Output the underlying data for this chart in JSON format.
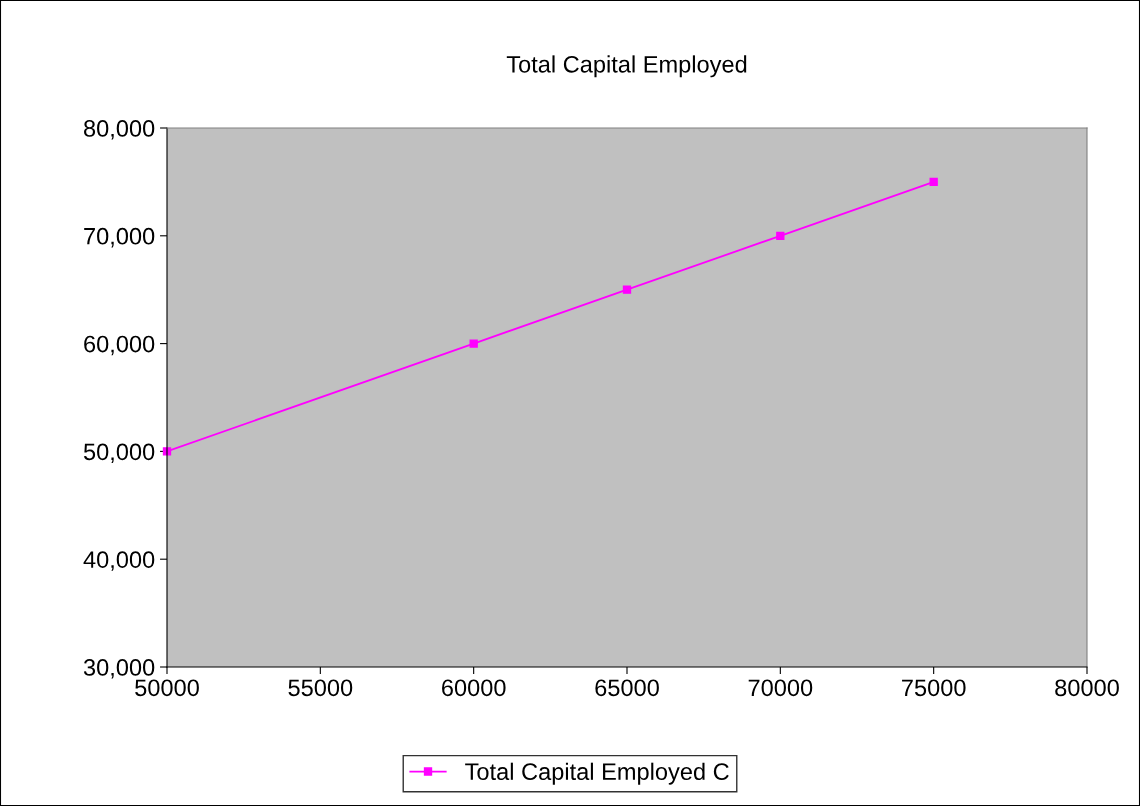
{
  "chart_data": {
    "type": "line",
    "title": "Total Capital Employed",
    "x": [
      50000,
      60000,
      65000,
      70000,
      75000
    ],
    "series": [
      {
        "name": "Total Capital Employed C",
        "color": "#ff00ff",
        "values": [
          50000,
          60000,
          65000,
          70000,
          75000
        ]
      }
    ],
    "xlim": [
      50000,
      80000
    ],
    "xticks": [
      50000,
      55000,
      60000,
      65000,
      70000,
      75000,
      80000
    ],
    "ylim": [
      30000,
      80000
    ],
    "yticks": [
      {
        "value": 30000,
        "label": "30,000"
      },
      {
        "value": 40000,
        "label": "40,000"
      },
      {
        "value": 50000,
        "label": "50,000"
      },
      {
        "value": 60000,
        "label": "60,000"
      },
      {
        "value": 70000,
        "label": "70,000"
      },
      {
        "value": 80000,
        "label": "80,000"
      }
    ],
    "grid": false,
    "legend": "bottom",
    "marker": "square",
    "line_style": "solid"
  }
}
